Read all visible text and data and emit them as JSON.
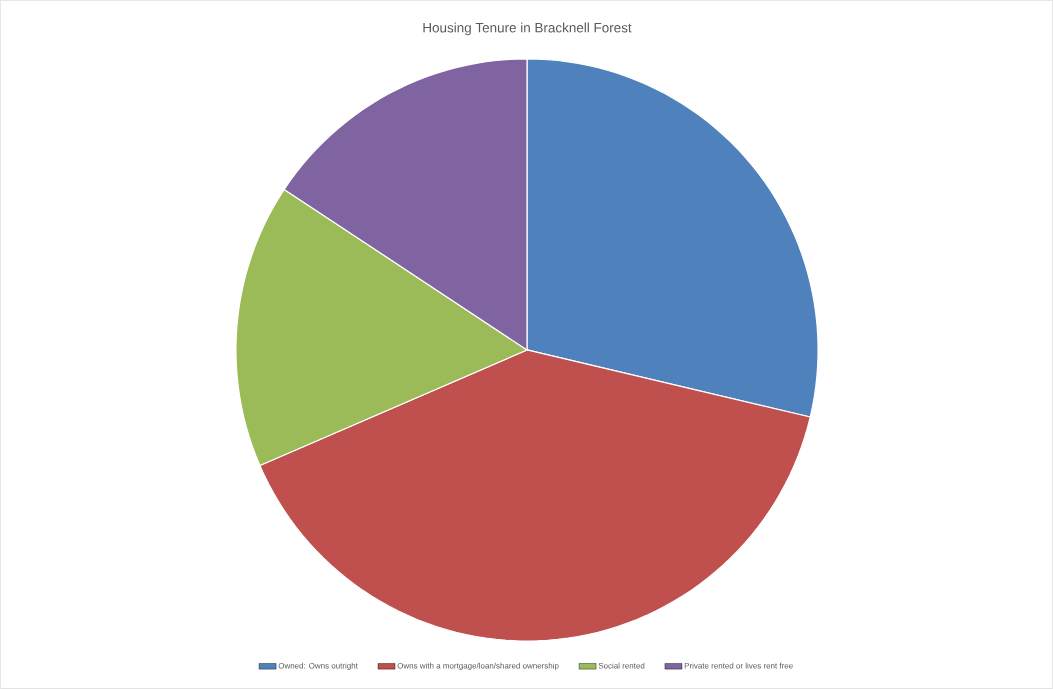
{
  "chart_data": {
    "type": "pie",
    "title": "Housing Tenure in Bracknell Forest",
    "categories": [
      "Owned: Owns outright",
      "Owns with a mortgage/loan/shared ownership",
      "Social rented",
      "Private rented or lives rent free"
    ],
    "values": [
      28.7,
      39.8,
      15.8,
      15.7
    ],
    "colors": [
      "#4f81bd",
      "#c0504d",
      "#9bbb59",
      "#8064a2"
    ],
    "legend": "bottom"
  }
}
